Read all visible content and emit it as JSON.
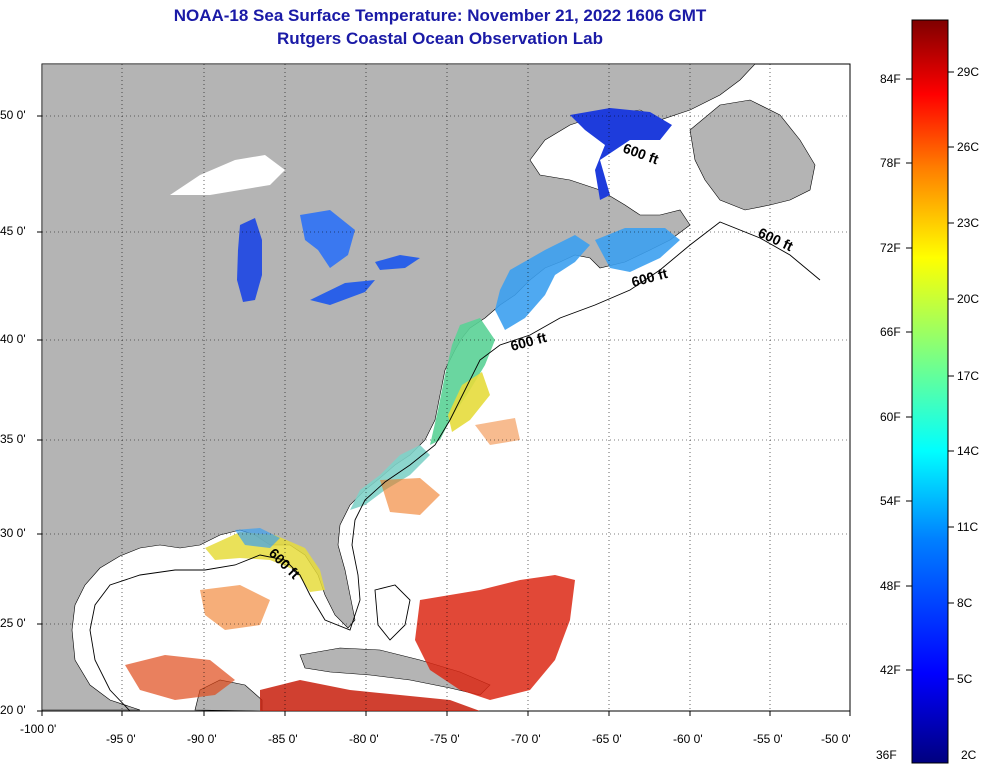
{
  "title": "NOAA-18 Sea Surface Temperature:  November 21, 2022 1606 GMT",
  "subtitle": "Rutgers Coastal Ocean Observation Lab",
  "axes": {
    "x_ticks": [
      "-100 0'",
      "-95 0'",
      "-90 0'",
      "-85 0'",
      "-80 0'",
      "-75 0'",
      "-70 0'",
      "-65 0'",
      "-60 0'",
      "-55 0'",
      "-50 0'"
    ],
    "y_ticks": [
      "50 0'",
      "45 0'",
      "40 0'",
      "35 0'",
      "30 0'",
      "25 0'",
      "20 0'"
    ]
  },
  "contour_label": "600 ft",
  "colorbar": {
    "fahrenheit": [
      "84F",
      "78F",
      "72F",
      "66F",
      "60F",
      "54F",
      "48F",
      "42F",
      "36F"
    ],
    "celsius": [
      "29C",
      "26C",
      "23C",
      "20C",
      "17C",
      "14C",
      "11C",
      "8C",
      "5C",
      "2C"
    ],
    "colors": [
      "#00007f",
      "#0000ff",
      "#007fff",
      "#00ffff",
      "#7fff7f",
      "#ffff00",
      "#ff7f00",
      "#ff0000",
      "#7f0000"
    ]
  },
  "colors": {
    "land": "#b4b4b4",
    "title": "#1a1aa6",
    "cold": "#1e3cdc",
    "cool": "#3ca0f0",
    "mild": "#e6dc3c",
    "warm": "#f07820",
    "hot": "#dc2814"
  }
}
